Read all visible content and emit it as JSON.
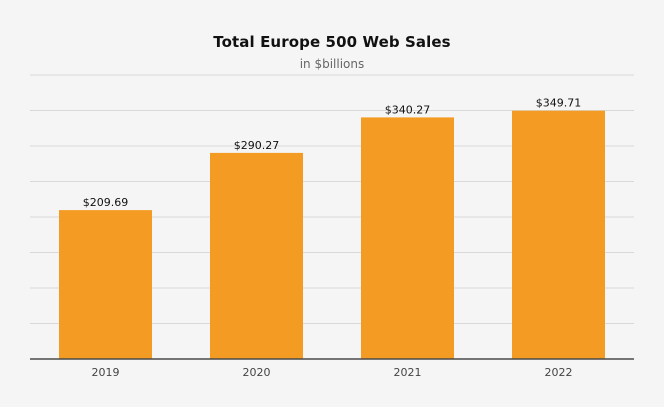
{
  "chart_data": {
    "type": "bar",
    "title": "Total Europe 500 Web Sales",
    "subtitle": "in $billions",
    "xlabel": "",
    "ylabel": "",
    "categories": [
      "2019",
      "2020",
      "2021",
      "2022"
    ],
    "values": [
      209.69,
      290.27,
      340.27,
      349.71
    ],
    "data_labels": [
      "$209.69",
      "$290.27",
      "$340.27",
      "$349.71"
    ],
    "ylim": [
      0,
      400
    ],
    "grid": true,
    "legend": "none",
    "colors": {
      "bar": "#f49b24",
      "background": "#f5f5f5",
      "grid": "#d9d9d9"
    }
  }
}
